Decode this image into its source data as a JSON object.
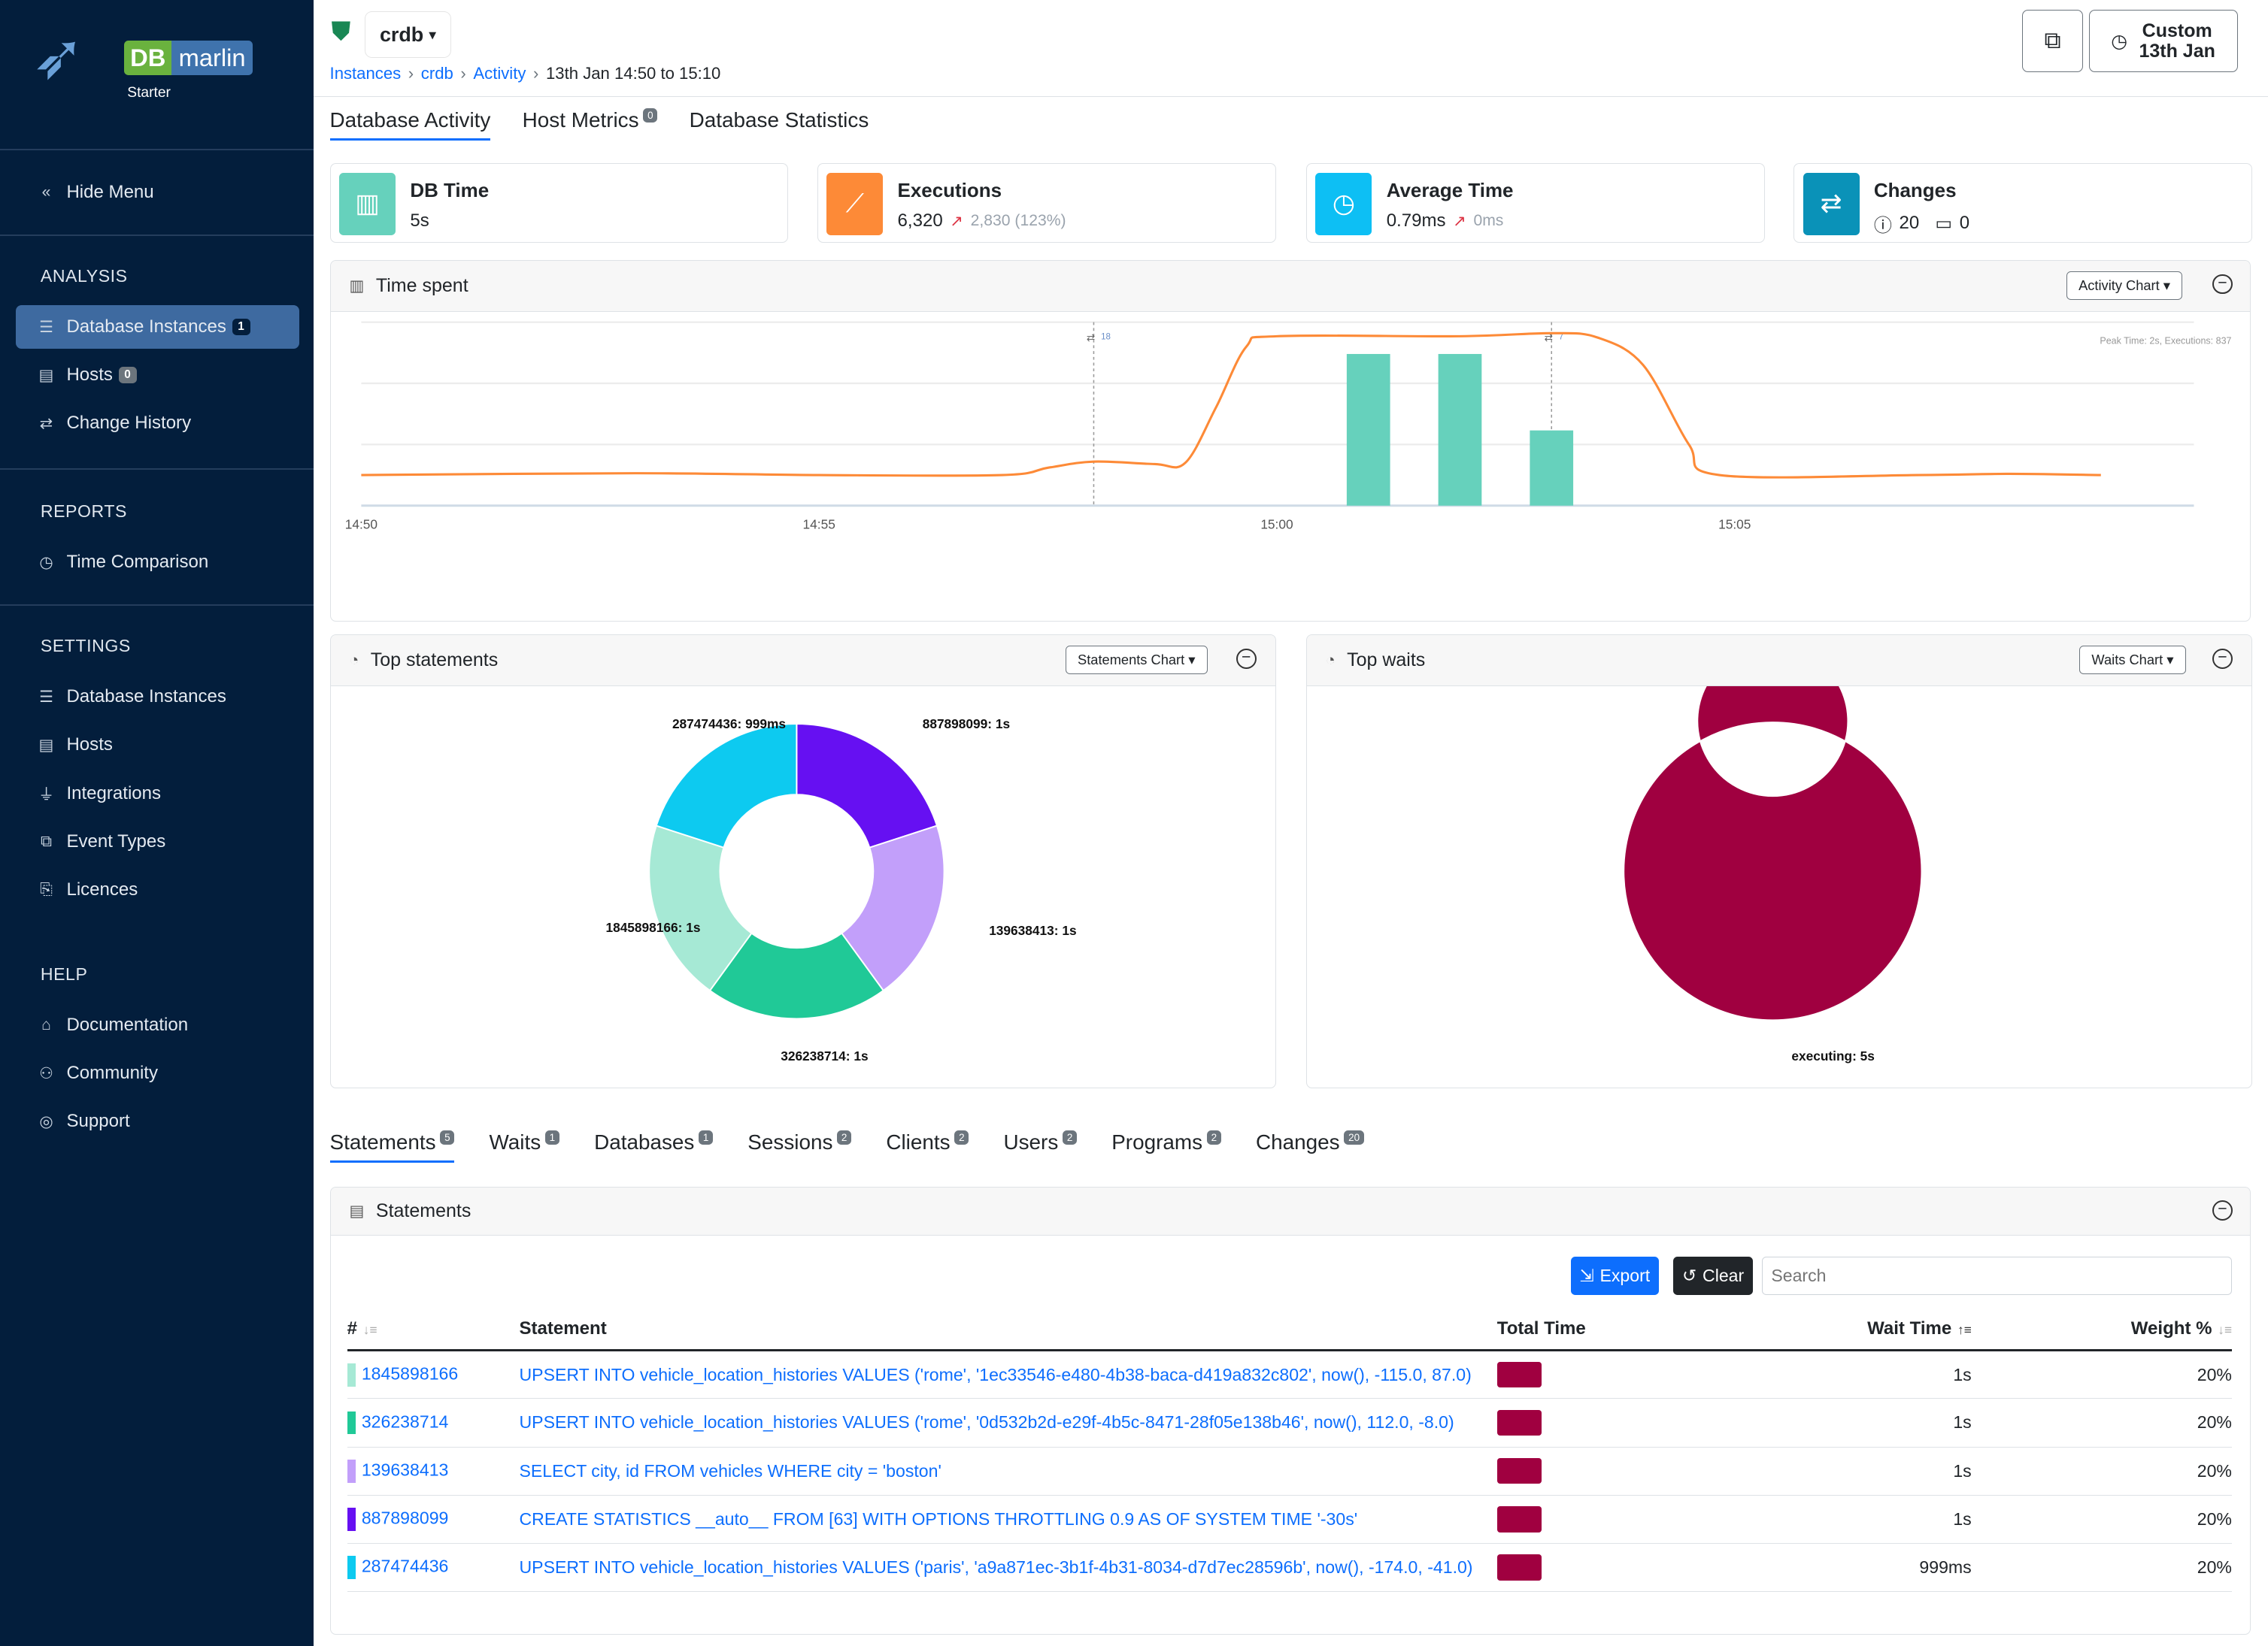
{
  "sidebar": {
    "brand_db": "DB",
    "brand_name": "marlin",
    "edition": "Starter",
    "hide_menu": "Hide Menu",
    "sections": [
      {
        "title": "ANALYSIS",
        "items": [
          {
            "label": "Database Instances",
            "icon": "database-icon",
            "badge": "1",
            "active": true
          },
          {
            "label": "Hosts",
            "icon": "server-icon",
            "badge": "0"
          },
          {
            "label": "Change History",
            "icon": "arrows-exchange-icon"
          }
        ]
      },
      {
        "title": "REPORTS",
        "items": [
          {
            "label": "Time Comparison",
            "icon": "stopwatch-icon"
          }
        ]
      },
      {
        "title": "SETTINGS",
        "items": [
          {
            "label": "Database Instances",
            "icon": "database-icon"
          },
          {
            "label": "Hosts",
            "icon": "server-icon"
          },
          {
            "label": "Integrations",
            "icon": "plug-icon"
          },
          {
            "label": "Event Types",
            "icon": "event-types-icon"
          },
          {
            "label": "Licences",
            "icon": "licence-icon"
          }
        ]
      },
      {
        "title": "HELP",
        "items": [
          {
            "label": "Documentation",
            "icon": "documentation-icon"
          },
          {
            "label": "Community",
            "icon": "people-icon"
          },
          {
            "label": "Support",
            "icon": "lifebuoy-icon"
          }
        ]
      }
    ]
  },
  "header": {
    "instance": "crdb",
    "breadcrumbs": [
      "Instances",
      "crdb",
      "Activity"
    ],
    "range_text": "13th Jan 14:50 to 15:10",
    "time_button_line1": "Custom",
    "time_button_line2": "13th Jan"
  },
  "tabs": [
    {
      "label": "Database Activity",
      "active": true
    },
    {
      "label": "Host Metrics",
      "badge": "0"
    },
    {
      "label": "Database Statistics"
    }
  ],
  "kpis": {
    "db_time": {
      "title": "DB Time",
      "value": "5s",
      "color": "#66d1bc"
    },
    "executions": {
      "title": "Executions",
      "value": "6,320",
      "delta": "2,830 (123%)",
      "color": "#fd8a37"
    },
    "average_time": {
      "title": "Average Time",
      "value": "0.79ms",
      "delta": "0ms",
      "color": "#0dbff4"
    },
    "changes": {
      "title": "Changes",
      "info_count": "20",
      "calendar_count": "0",
      "color": "#0a92b8"
    }
  },
  "time_spent": {
    "title": "Time spent",
    "dropdown": "Activity Chart",
    "peak_text": "Peak Time: 2s, Executions: 837"
  },
  "chart_data": [
    {
      "type": "bar+line",
      "title": "Time spent",
      "x_ticks": [
        "14:50",
        "14:55",
        "15:00",
        "15:05"
      ],
      "xlim": [
        "14:50:00",
        "15:09:30"
      ],
      "ylim": [
        0,
        3
      ],
      "grid": true,
      "line": {
        "color": "#fd8a37",
        "points": [
          [
            "14:50:00",
            0.5
          ],
          [
            "14:53:00",
            0.53
          ],
          [
            "14:55:00",
            0.5
          ],
          [
            "14:57:00",
            0.5
          ],
          [
            "14:57:30",
            0.62
          ],
          [
            "14:58:00",
            0.72
          ],
          [
            "14:58:40",
            0.68
          ],
          [
            "14:59:00",
            0.7
          ],
          [
            "14:59:20",
            1.6
          ],
          [
            "14:59:40",
            2.6
          ],
          [
            "15:00:00",
            2.77
          ],
          [
            "15:02:00",
            2.77
          ],
          [
            "15:03:00",
            2.82
          ],
          [
            "15:03:30",
            2.75
          ],
          [
            "15:04:00",
            2.3
          ],
          [
            "15:04:30",
            1.0
          ],
          [
            "15:04:50",
            0.5
          ],
          [
            "15:07:00",
            0.5
          ],
          [
            "15:08:00",
            0.52
          ],
          [
            "15:09:00",
            0.5
          ]
        ]
      },
      "bars": {
        "color": "#66d1bc",
        "points": [
          [
            "15:01:00",
            2.48
          ],
          [
            "15:02:00",
            2.48
          ],
          [
            "15:03:00",
            1.23
          ]
        ]
      },
      "markers": [
        {
          "time": "14:58:00",
          "label": "18"
        },
        {
          "time": "15:03:00",
          "label": "7"
        }
      ]
    },
    {
      "type": "pie",
      "title": "Top statements",
      "donut": true,
      "slices": [
        {
          "label": "887898099: 1s",
          "value": 20,
          "color": "#6610f2"
        },
        {
          "label": "139638413: 1s",
          "value": 20,
          "color": "#c29ffa"
        },
        {
          "label": "326238714: 1s",
          "value": 20,
          "color": "#20c997"
        },
        {
          "label": "1845898166: 1s",
          "value": 20,
          "color": "#a6e9d5"
        },
        {
          "label": "287474436: 999ms",
          "value": 20,
          "color": "#0dcaf0"
        }
      ]
    },
    {
      "type": "pie",
      "title": "Top waits",
      "donut": true,
      "slices": [
        {
          "label": "executing: 5s",
          "value": 100,
          "color": "#a00040"
        }
      ]
    }
  ],
  "top_statements": {
    "title": "Top statements",
    "dropdown": "Statements Chart"
  },
  "top_waits": {
    "title": "Top waits",
    "dropdown": "Waits Chart"
  },
  "bottom_tabs": [
    {
      "label": "Statements",
      "badge": "5",
      "active": true
    },
    {
      "label": "Waits",
      "badge": "1"
    },
    {
      "label": "Databases",
      "badge": "1"
    },
    {
      "label": "Sessions",
      "badge": "2"
    },
    {
      "label": "Clients",
      "badge": "2"
    },
    {
      "label": "Users",
      "badge": "2"
    },
    {
      "label": "Programs",
      "badge": "2"
    },
    {
      "label": "Changes",
      "badge": "20"
    }
  ],
  "statements": {
    "title": "Statements",
    "export": "Export",
    "clear": "Clear",
    "search_placeholder": "Search",
    "columns": [
      "#",
      "Statement",
      "Total Time",
      "Wait Time",
      "Weight %"
    ],
    "rows": [
      {
        "id": "1845898166",
        "color": "#a6e9d5",
        "statement": "UPSERT INTO vehicle_location_histories VALUES ('rome', '1ec33546-e480-4b38-baca-d419a832c802', now(), -115.0, 87.0)",
        "wait": "1s",
        "weight": "20%"
      },
      {
        "id": "326238714",
        "color": "#20c997",
        "statement": "UPSERT INTO vehicle_location_histories VALUES ('rome', '0d532b2d-e29f-4b5c-8471-28f05e138b46', now(), 112.0, -8.0)",
        "wait": "1s",
        "weight": "20%"
      },
      {
        "id": "139638413",
        "color": "#c29ffa",
        "statement": "SELECT city, id FROM vehicles WHERE city = 'boston'",
        "wait": "1s",
        "weight": "20%"
      },
      {
        "id": "887898099",
        "color": "#6610f2",
        "statement": "CREATE STATISTICS __auto__ FROM [63] WITH OPTIONS THROTTLING 0.9 AS OF SYSTEM TIME '-30s'",
        "wait": "1s",
        "weight": "20%"
      },
      {
        "id": "287474436",
        "color": "#0dcaf0",
        "statement": "UPSERT INTO vehicle_location_histories VALUES ('paris', 'a9a871ec-3b1f-4b31-8034-d7d7ec28596b', now(), -174.0, -41.0)",
        "wait": "999ms",
        "weight": "20%"
      }
    ],
    "total_time_color": "#a00040"
  }
}
